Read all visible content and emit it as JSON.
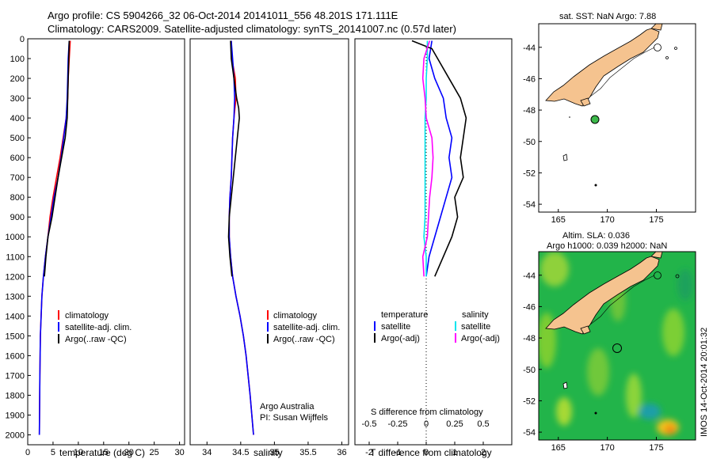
{
  "header": {
    "title_line1": "Argo profile: CS 5904266_32 06-Oct-2014 20141011_556 48.201S 171.111E",
    "title_line2": "Climatology: CARS2009. Satellite-adjusted climatology: synTS_20141007.nc (0.57d later)"
  },
  "colors": {
    "climatology": "#ff0000",
    "satellite": "#0000ff",
    "argo": "#000000",
    "sat_salinity": "#00e5ee",
    "argo_salinity": "#ff00ff",
    "land": "#f5c38f"
  },
  "chart_data": [
    {
      "type": "line",
      "name": "temperature-profile",
      "xlabel": "temperature (deg C)",
      "ylabel": "",
      "xlim": [
        0,
        31
      ],
      "ylim": [
        2050,
        0
      ],
      "xticks": [
        0,
        5,
        10,
        15,
        20,
        25,
        30
      ],
      "yticks": [
        0,
        100,
        200,
        300,
        400,
        500,
        600,
        700,
        800,
        900,
        1000,
        1100,
        1200,
        1300,
        1400,
        1500,
        1600,
        1700,
        1800,
        1900,
        2000
      ],
      "legend": [
        "climatology",
        "satellite-adj. clim.",
        "Argo(..raw -QC)"
      ],
      "series": [
        {
          "name": "climatology",
          "depth": [
            10,
            100,
            200,
            300,
            400,
            500,
            600,
            700,
            800,
            900,
            1000,
            1100,
            1200,
            1300,
            1500,
            1700,
            2000
          ],
          "values": [
            8.4,
            8.2,
            8.0,
            7.9,
            7.6,
            7.0,
            6.4,
            5.7,
            5.0,
            4.4,
            4.0,
            3.5,
            3.1,
            2.8,
            2.5,
            2.4,
            2.3
          ]
        },
        {
          "name": "satellite-adj. clim.",
          "depth": [
            10,
            100,
            200,
            300,
            400,
            500,
            600,
            700,
            800,
            900,
            1000,
            1100,
            1200,
            1300,
            1500,
            1700,
            2000
          ],
          "values": [
            8.2,
            8.0,
            7.9,
            7.8,
            7.6,
            7.1,
            6.6,
            6.0,
            5.2,
            4.6,
            4.0,
            3.5,
            3.1,
            2.8,
            2.5,
            2.4,
            2.3
          ]
        },
        {
          "name": "Argo(..raw -QC)",
          "depth": [
            10,
            100,
            200,
            300,
            400,
            500,
            600,
            700,
            800,
            900,
            1000,
            1100,
            1200
          ],
          "values": [
            8.2,
            8.1,
            8.0,
            7.9,
            7.8,
            7.4,
            6.7,
            6.0,
            5.4,
            4.8,
            4.0,
            3.6,
            3.3
          ]
        }
      ]
    },
    {
      "type": "line",
      "name": "salinity-profile",
      "xlabel": "salinity",
      "ylabel": "",
      "xlim": [
        33.75,
        36.1
      ],
      "ylim": [
        2050,
        0
      ],
      "xticks": [
        34,
        34.5,
        35,
        35.5,
        36
      ],
      "legend": [
        "climatology",
        "satellite-adj. clim.",
        "Argo(..raw -QC)"
      ],
      "annotation_line1": "Argo Australia",
      "annotation_line2": "PI: Susan Wijffels",
      "series": [
        {
          "name": "climatology",
          "depth": [
            10,
            100,
            200,
            300,
            400,
            500,
            600,
            700,
            800,
            900,
            1000,
            1100,
            1200,
            1300,
            1400,
            1500,
            1600,
            1800,
            2000
          ],
          "values": [
            34.36,
            34.37,
            34.42,
            34.43,
            34.4,
            34.38,
            34.37,
            34.36,
            34.34,
            34.33,
            34.33,
            34.35,
            34.38,
            34.43,
            34.49,
            34.54,
            34.58,
            34.64,
            34.69
          ]
        },
        {
          "name": "satellite-adj. clim.",
          "depth": [
            10,
            100,
            200,
            300,
            400,
            500,
            600,
            700,
            800,
            900,
            1000,
            1100,
            1200,
            1300,
            1400,
            1500,
            1600,
            1800,
            2000
          ],
          "values": [
            34.36,
            34.38,
            34.4,
            34.41,
            34.4,
            34.38,
            34.37,
            34.36,
            34.34,
            34.33,
            34.33,
            34.35,
            34.38,
            34.43,
            34.49,
            34.54,
            34.58,
            34.64,
            34.69
          ]
        },
        {
          "name": "Argo(..raw -QC)",
          "depth": [
            10,
            100,
            200,
            300,
            350,
            400,
            500,
            600,
            700,
            800,
            900,
            1000,
            1100,
            1200
          ],
          "values": [
            34.35,
            34.36,
            34.4,
            34.44,
            34.47,
            34.48,
            34.45,
            34.42,
            34.39,
            34.36,
            34.33,
            34.32,
            34.34,
            34.37
          ]
        }
      ]
    },
    {
      "type": "line",
      "name": "difference-profile",
      "xlabel": "T difference from climatology",
      "x2label": "S difference from climatology",
      "xlim": [
        -2.5,
        3
      ],
      "ylim": [
        2050,
        0
      ],
      "xticks": [
        -2,
        -1,
        0,
        1,
        2
      ],
      "x2ticks": [
        -0.5,
        -0.25,
        0,
        0.25,
        0.5
      ],
      "legend_headers": [
        "temperature",
        "salinity"
      ],
      "legend": [
        "satellite",
        "Argo(-adj)",
        "satellite",
        "Argo(-adj)"
      ],
      "series": [
        {
          "name": "T satellite",
          "depth": [
            10,
            100,
            200,
            300,
            400,
            500,
            600,
            700,
            800,
            900,
            1000,
            1100,
            1200
          ],
          "values": [
            0.2,
            0.1,
            0.3,
            0.6,
            0.7,
            0.9,
            0.8,
            0.9,
            0.7,
            0.5,
            0.3,
            0.1,
            0.0
          ]
        },
        {
          "name": "T Argo(-adj)",
          "depth": [
            10,
            50,
            100,
            200,
            300,
            400,
            500,
            600,
            700,
            800,
            900,
            1000,
            1100,
            1200
          ],
          "values": [
            -0.5,
            0.2,
            0.4,
            0.8,
            1.2,
            1.4,
            1.3,
            1.2,
            1.3,
            1.0,
            1.1,
            0.9,
            0.6,
            0.3
          ]
        },
        {
          "name": "S satellite",
          "depth": [
            10,
            100,
            200,
            300,
            400,
            500,
            600,
            700,
            800,
            900,
            1000,
            1100,
            1200
          ],
          "values": [
            0.01,
            0.01,
            0.0,
            0.0,
            -0.01,
            -0.01,
            -0.01,
            -0.01,
            -0.01,
            -0.01,
            -0.02,
            0.0,
            0.0
          ]
        },
        {
          "name": "S Argo(-adj)",
          "depth": [
            10,
            100,
            200,
            300,
            400,
            500,
            600,
            700,
            800,
            900,
            1000,
            1100,
            1200
          ],
          "values": [
            0.03,
            -0.02,
            -0.03,
            -0.01,
            0.0,
            0.05,
            0.06,
            0.05,
            0.03,
            0.02,
            0.01,
            -0.03,
            -0.02
          ]
        }
      ]
    }
  ],
  "map_sst": {
    "title": "sat. SST: NaN Argo: 7.88",
    "xticks": [
      "165",
      "170",
      "175"
    ],
    "yticks": [
      "-44",
      "-46",
      "-48",
      "-50",
      "-52",
      "-54"
    ],
    "lon_range": [
      163,
      179
    ],
    "lat_range": [
      -54.5,
      -42.5
    ],
    "argo_point": {
      "lon": 171.111,
      "lat": -48.201
    }
  },
  "map_sla": {
    "title_line1": "Altim. SLA: 0.036",
    "title_line2": "Argo h1000: 0.039 h2000: NaN",
    "xticks": [
      "165",
      "170",
      "175"
    ],
    "yticks": [
      "-44",
      "-46",
      "-48",
      "-50",
      "-52",
      "-54"
    ],
    "stamp": "IMOS 14-Oct-2014 20:01:32"
  }
}
